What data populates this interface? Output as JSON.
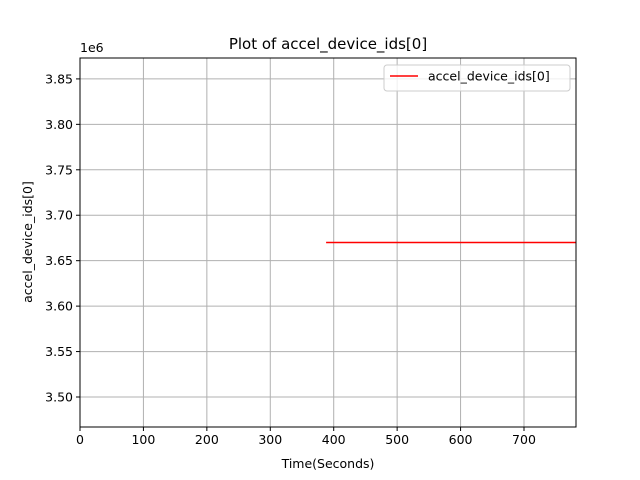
{
  "chart_data": {
    "type": "line",
    "title": "Plot of accel_device_ids[0]",
    "xlabel": "Time(Seconds)",
    "ylabel": "accel_device_ids[0]",
    "y_offset_label": "1e6",
    "xlim": [
      0,
      782
    ],
    "ylim": [
      3.467,
      3.873
    ],
    "x_ticks": [
      0,
      100,
      200,
      300,
      400,
      500,
      600,
      700
    ],
    "x_tick_labels": [
      "0",
      "100",
      "200",
      "300",
      "400",
      "500",
      "600",
      "700"
    ],
    "y_ticks": [
      3.5,
      3.55,
      3.6,
      3.65,
      3.7,
      3.75,
      3.8,
      3.85
    ],
    "y_tick_labels": [
      "3.50",
      "3.55",
      "3.60",
      "3.65",
      "3.70",
      "3.75",
      "3.80",
      "3.85"
    ],
    "grid": true,
    "legend_position": "top-right",
    "series": [
      {
        "name": "accel_device_ids[0]",
        "color": "#ff0000",
        "x": [
          388,
          782
        ],
        "y": [
          3.67,
          3.67
        ]
      }
    ]
  }
}
